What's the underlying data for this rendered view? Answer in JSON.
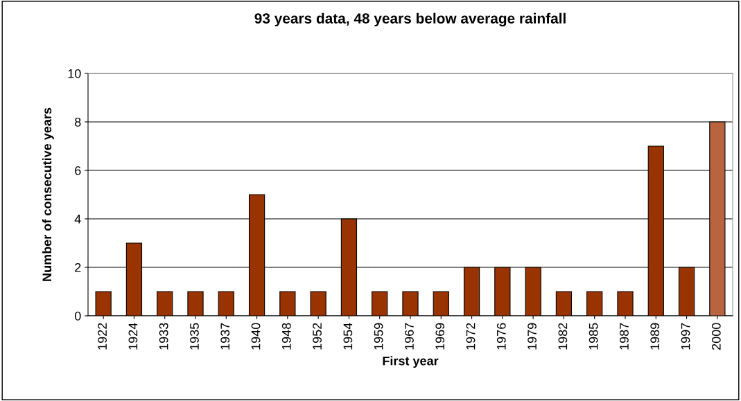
{
  "chart_data": {
    "type": "bar",
    "title": "93 years data, 48 years below average rainfall",
    "xlabel": "First year",
    "ylabel": "Number of consecutive years",
    "categories": [
      "1922",
      "1924",
      "1933",
      "1935",
      "1937",
      "1940",
      "1948",
      "1952",
      "1954",
      "1959",
      "1967",
      "1969",
      "1972",
      "1976",
      "1979",
      "1982",
      "1985",
      "1987",
      "1989",
      "1997",
      "2000"
    ],
    "values": [
      1,
      3,
      1,
      1,
      1,
      5,
      1,
      1,
      4,
      1,
      1,
      1,
      2,
      2,
      2,
      1,
      1,
      1,
      7,
      2,
      8
    ],
    "colors": [
      "#993300",
      "#993300",
      "#993300",
      "#993300",
      "#993300",
      "#993300",
      "#993300",
      "#993300",
      "#993300",
      "#993300",
      "#993300",
      "#993300",
      "#993300",
      "#993300",
      "#993300",
      "#993300",
      "#993300",
      "#993300",
      "#993300",
      "#993300",
      "#b8643e"
    ],
    "ylim": [
      0,
      10
    ],
    "yticks": [
      0,
      2,
      4,
      6,
      8,
      10
    ],
    "grid": "y",
    "legend": false
  }
}
